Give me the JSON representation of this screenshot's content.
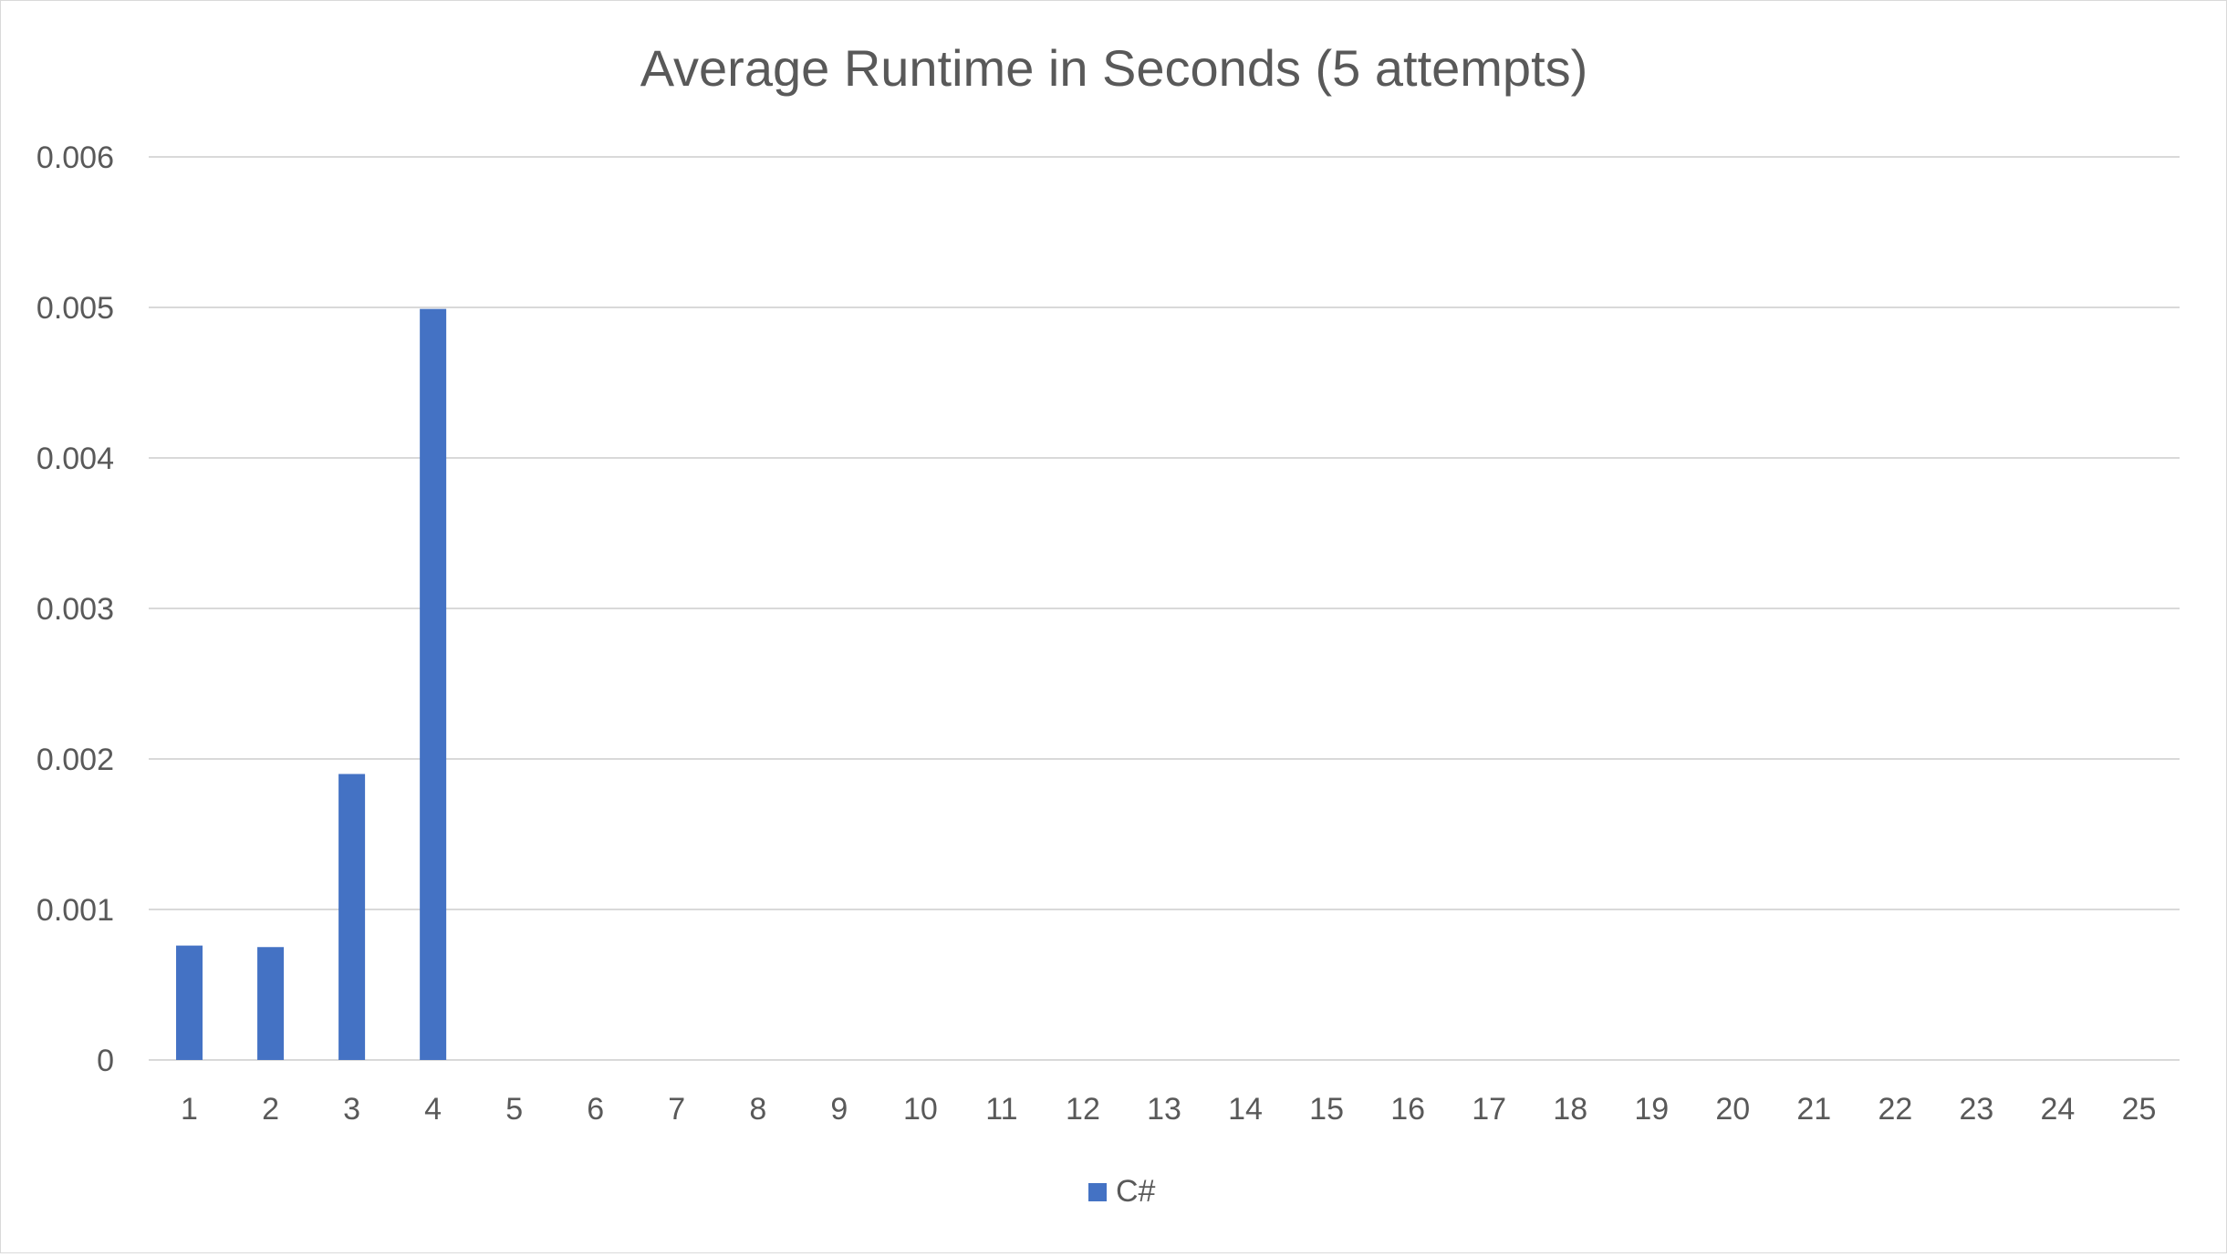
{
  "chart_data": {
    "type": "bar",
    "title": "Average Runtime in Seconds (5 attempts)",
    "xlabel": "",
    "ylabel": "",
    "categories": [
      "1",
      "2",
      "3",
      "4",
      "5",
      "6",
      "7",
      "8",
      "9",
      "10",
      "11",
      "12",
      "13",
      "14",
      "15",
      "16",
      "17",
      "18",
      "19",
      "20",
      "21",
      "22",
      "23",
      "24",
      "25"
    ],
    "series": [
      {
        "name": "C#",
        "color": "#4472C4",
        "values": [
          0.00076,
          0.00075,
          0.0019,
          0.00499,
          null,
          null,
          null,
          null,
          null,
          null,
          null,
          null,
          null,
          null,
          null,
          null,
          null,
          null,
          null,
          null,
          null,
          null,
          null,
          null,
          null
        ]
      }
    ],
    "ylim": [
      0,
      0.006
    ],
    "y_ticks": [
      "0",
      "0.001",
      "0.002",
      "0.003",
      "0.004",
      "0.005",
      "0.006"
    ],
    "y_tick_values": [
      0,
      0.001,
      0.002,
      0.003,
      0.004,
      0.005,
      0.006
    ],
    "grid": true,
    "legend_position": "bottom-center",
    "colors": {
      "gridline": "#d9d9d9",
      "axis_text": "#595959",
      "title_text": "#595959"
    }
  }
}
